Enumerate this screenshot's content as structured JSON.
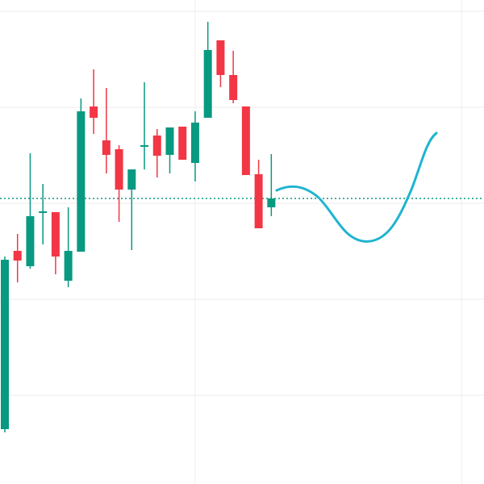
{
  "chart_data": {
    "type": "candlestick",
    "open": [
      68,
      289,
      270,
      336,
      337,
      252,
      288,
      468,
      426,
      415,
      365,
      418,
      432,
      408,
      443,
      398,
      454,
      550,
      507,
      468,
      384,
      343
    ],
    "high": [
      282,
      310,
      410,
      372,
      337,
      343,
      478,
      514,
      491,
      420,
      390,
      498,
      440,
      442,
      443,
      462,
      573,
      550,
      537,
      468,
      402,
      409
    ],
    "low": [
      64,
      250,
      267,
      297,
      260,
      244,
      288,
      434,
      385,
      325,
      290,
      390,
      380,
      385,
      402,
      375,
      454,
      492,
      472,
      383,
      317,
      332
    ],
    "close": [
      278,
      277,
      332,
      338,
      282,
      289,
      462,
      454,
      408,
      365,
      390,
      420,
      407,
      442,
      402,
      448,
      538,
      507,
      476,
      383,
      317,
      354
    ],
    "up_color": "#089981",
    "down_color": "#f23645",
    "ylim": [
      0,
      600
    ],
    "yticks": [
      110,
      229,
      348,
      467,
      586
    ],
    "xlim": [
      -0.38,
      37.76
    ],
    "xticks": [
      15,
      36
    ],
    "price_line": 354,
    "price_line_color": "#089981",
    "grid": true
  }
}
